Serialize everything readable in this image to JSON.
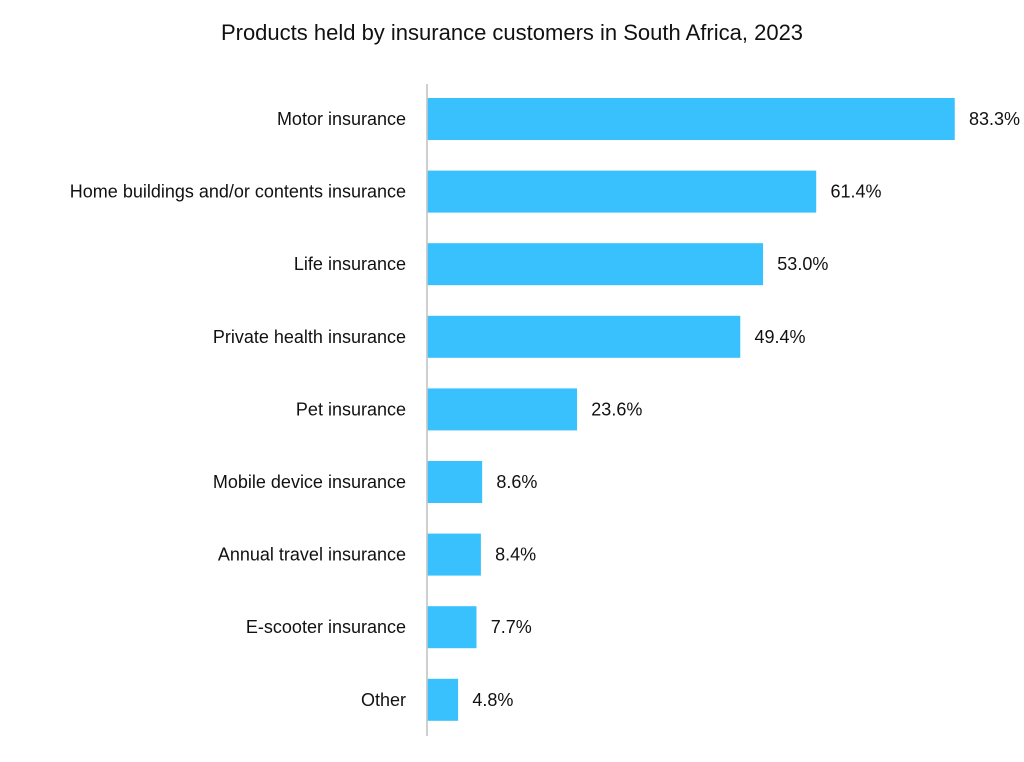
{
  "chart_data": {
    "type": "bar",
    "orientation": "horizontal",
    "title": "Products held by insurance customers in South Africa, 2023",
    "categories": [
      "Motor insurance",
      "Home buildings and/or contents insurance",
      "Life insurance",
      "Private health insurance",
      "Pet insurance",
      "Mobile device insurance",
      "Annual travel insurance",
      "E-scooter insurance",
      "Other"
    ],
    "values": [
      83.3,
      61.4,
      53.0,
      49.4,
      23.6,
      8.6,
      8.4,
      7.7,
      4.8
    ],
    "value_labels": [
      "83.3%",
      "61.4%",
      "53.0%",
      "49.4%",
      "23.6%",
      "8.6%",
      "8.4%",
      "7.7%",
      "4.8%"
    ],
    "xlim": [
      0,
      100
    ],
    "bar_color": "#38c1fd",
    "axis_color": "#bfbfbf",
    "grid": false,
    "legend": "none"
  }
}
